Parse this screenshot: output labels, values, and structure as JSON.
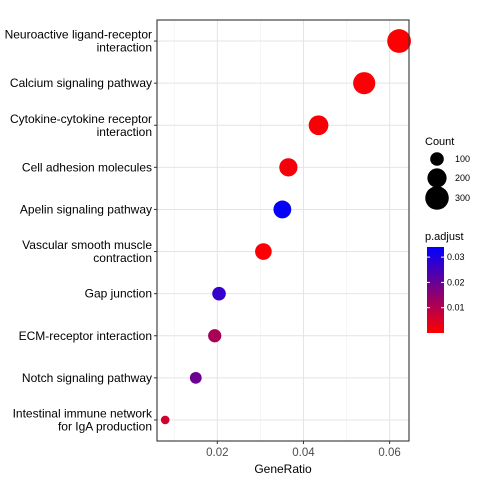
{
  "chart_data": {
    "type": "scatter",
    "xlabel": "GeneRatio",
    "ylabel": "",
    "xlim": [
      0.006,
      0.0645
    ],
    "xticks": [
      0.02,
      0.04,
      0.06
    ],
    "xtick_labels": [
      "0.02",
      "0.04",
      "0.06"
    ],
    "grid": true,
    "categories": [
      "Neuroactive ligand-receptor interaction",
      "Calcium signaling pathway",
      "Cytokine-cytokine receptor interaction",
      "Cell adhesion molecules",
      "Apelin signaling pathway",
      "Vascular smooth muscle contraction",
      "Gap junction",
      "ECM-receptor interaction",
      "Notch signaling pathway",
      "Intestinal immune network for IgA production"
    ],
    "category_label_lines": [
      [
        "Neuroactive ligand-receptor",
        "interaction"
      ],
      [
        "Calcium signaling pathway"
      ],
      [
        "Cytokine-cytokine receptor",
        "interaction"
      ],
      [
        "Cell adhesion molecules"
      ],
      [
        "Apelin signaling pathway"
      ],
      [
        "Vascular smooth muscle",
        "contraction"
      ],
      [
        "Gap junction"
      ],
      [
        "ECM-receptor interaction"
      ],
      [
        "Notch signaling pathway"
      ],
      [
        "Intestinal immune network",
        "for IgA production"
      ]
    ],
    "points": [
      {
        "category": "Neuroactive ligand-receptor interaction",
        "x": 0.0622,
        "count": 305,
        "p_adjust": 0.0003
      },
      {
        "category": "Calcium signaling pathway",
        "x": 0.0541,
        "count": 265,
        "p_adjust": 0.0005
      },
      {
        "category": "Cytokine-cytokine receptor interaction",
        "x": 0.0435,
        "count": 210,
        "p_adjust": 0.0008
      },
      {
        "category": "Cell adhesion molecules",
        "x": 0.0365,
        "count": 180,
        "p_adjust": 0.0015
      },
      {
        "category": "Apelin signaling pathway",
        "x": 0.0351,
        "count": 172,
        "p_adjust": 0.0335
      },
      {
        "category": "Vascular smooth muscle contraction",
        "x": 0.0307,
        "count": 150,
        "p_adjust": 0.0005
      },
      {
        "category": "Gap junction",
        "x": 0.0204,
        "count": 100,
        "p_adjust": 0.027
      },
      {
        "category": "ECM-receptor interaction",
        "x": 0.0194,
        "count": 95,
        "p_adjust": 0.0115
      },
      {
        "category": "Notch signaling pathway",
        "x": 0.015,
        "count": 75,
        "p_adjust": 0.0195
      },
      {
        "category": "Intestinal immune network for IgA production",
        "x": 0.0079,
        "count": 40,
        "p_adjust": 0.006
      }
    ],
    "size_legend": {
      "title": "Count",
      "values": [
        100,
        200,
        300
      ],
      "labels": [
        "100",
        "200",
        "300"
      ]
    },
    "color_legend": {
      "title": "p.adjust",
      "range": [
        0.0,
        0.034
      ],
      "ticks": [
        0.01,
        0.02,
        0.03
      ],
      "tick_labels": [
        "0.01",
        "0.02",
        "0.03"
      ],
      "low_color": "#ff0000",
      "high_color": "#0000ff"
    }
  }
}
